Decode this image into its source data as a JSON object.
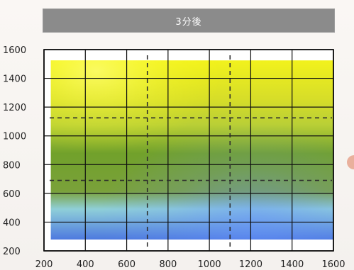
{
  "chart_data": {
    "type": "heatmap",
    "title": "3分後",
    "x_ticks": [
      "200",
      "400",
      "600",
      "800",
      "1000",
      "1200",
      "1400",
      "1600"
    ],
    "y_ticks": [
      "1600",
      "1400",
      "1200",
      "1000",
      "800",
      "600",
      "400",
      "200"
    ],
    "xlim": [
      200,
      1600
    ],
    "ylim": [
      200,
      1600
    ],
    "grid": true,
    "legend": "none",
    "dashed_reference_lines": {
      "x": [
        700,
        1100
      ],
      "y": [
        1125,
        690
      ]
    },
    "field_extent": {
      "x": [
        233,
        1600
      ],
      "y": [
        279,
        1525
      ]
    },
    "colors": {
      "grid": "#111111",
      "axis_text": "#222222",
      "top": "#f2f21c",
      "upper_middle": "#b9cf36",
      "middle": "#71a12b",
      "lower_middle": "#8fcfd8",
      "bottom": "#4d79df"
    }
  },
  "decor": {
    "side_accent_icon": "partial-circle-icon"
  }
}
